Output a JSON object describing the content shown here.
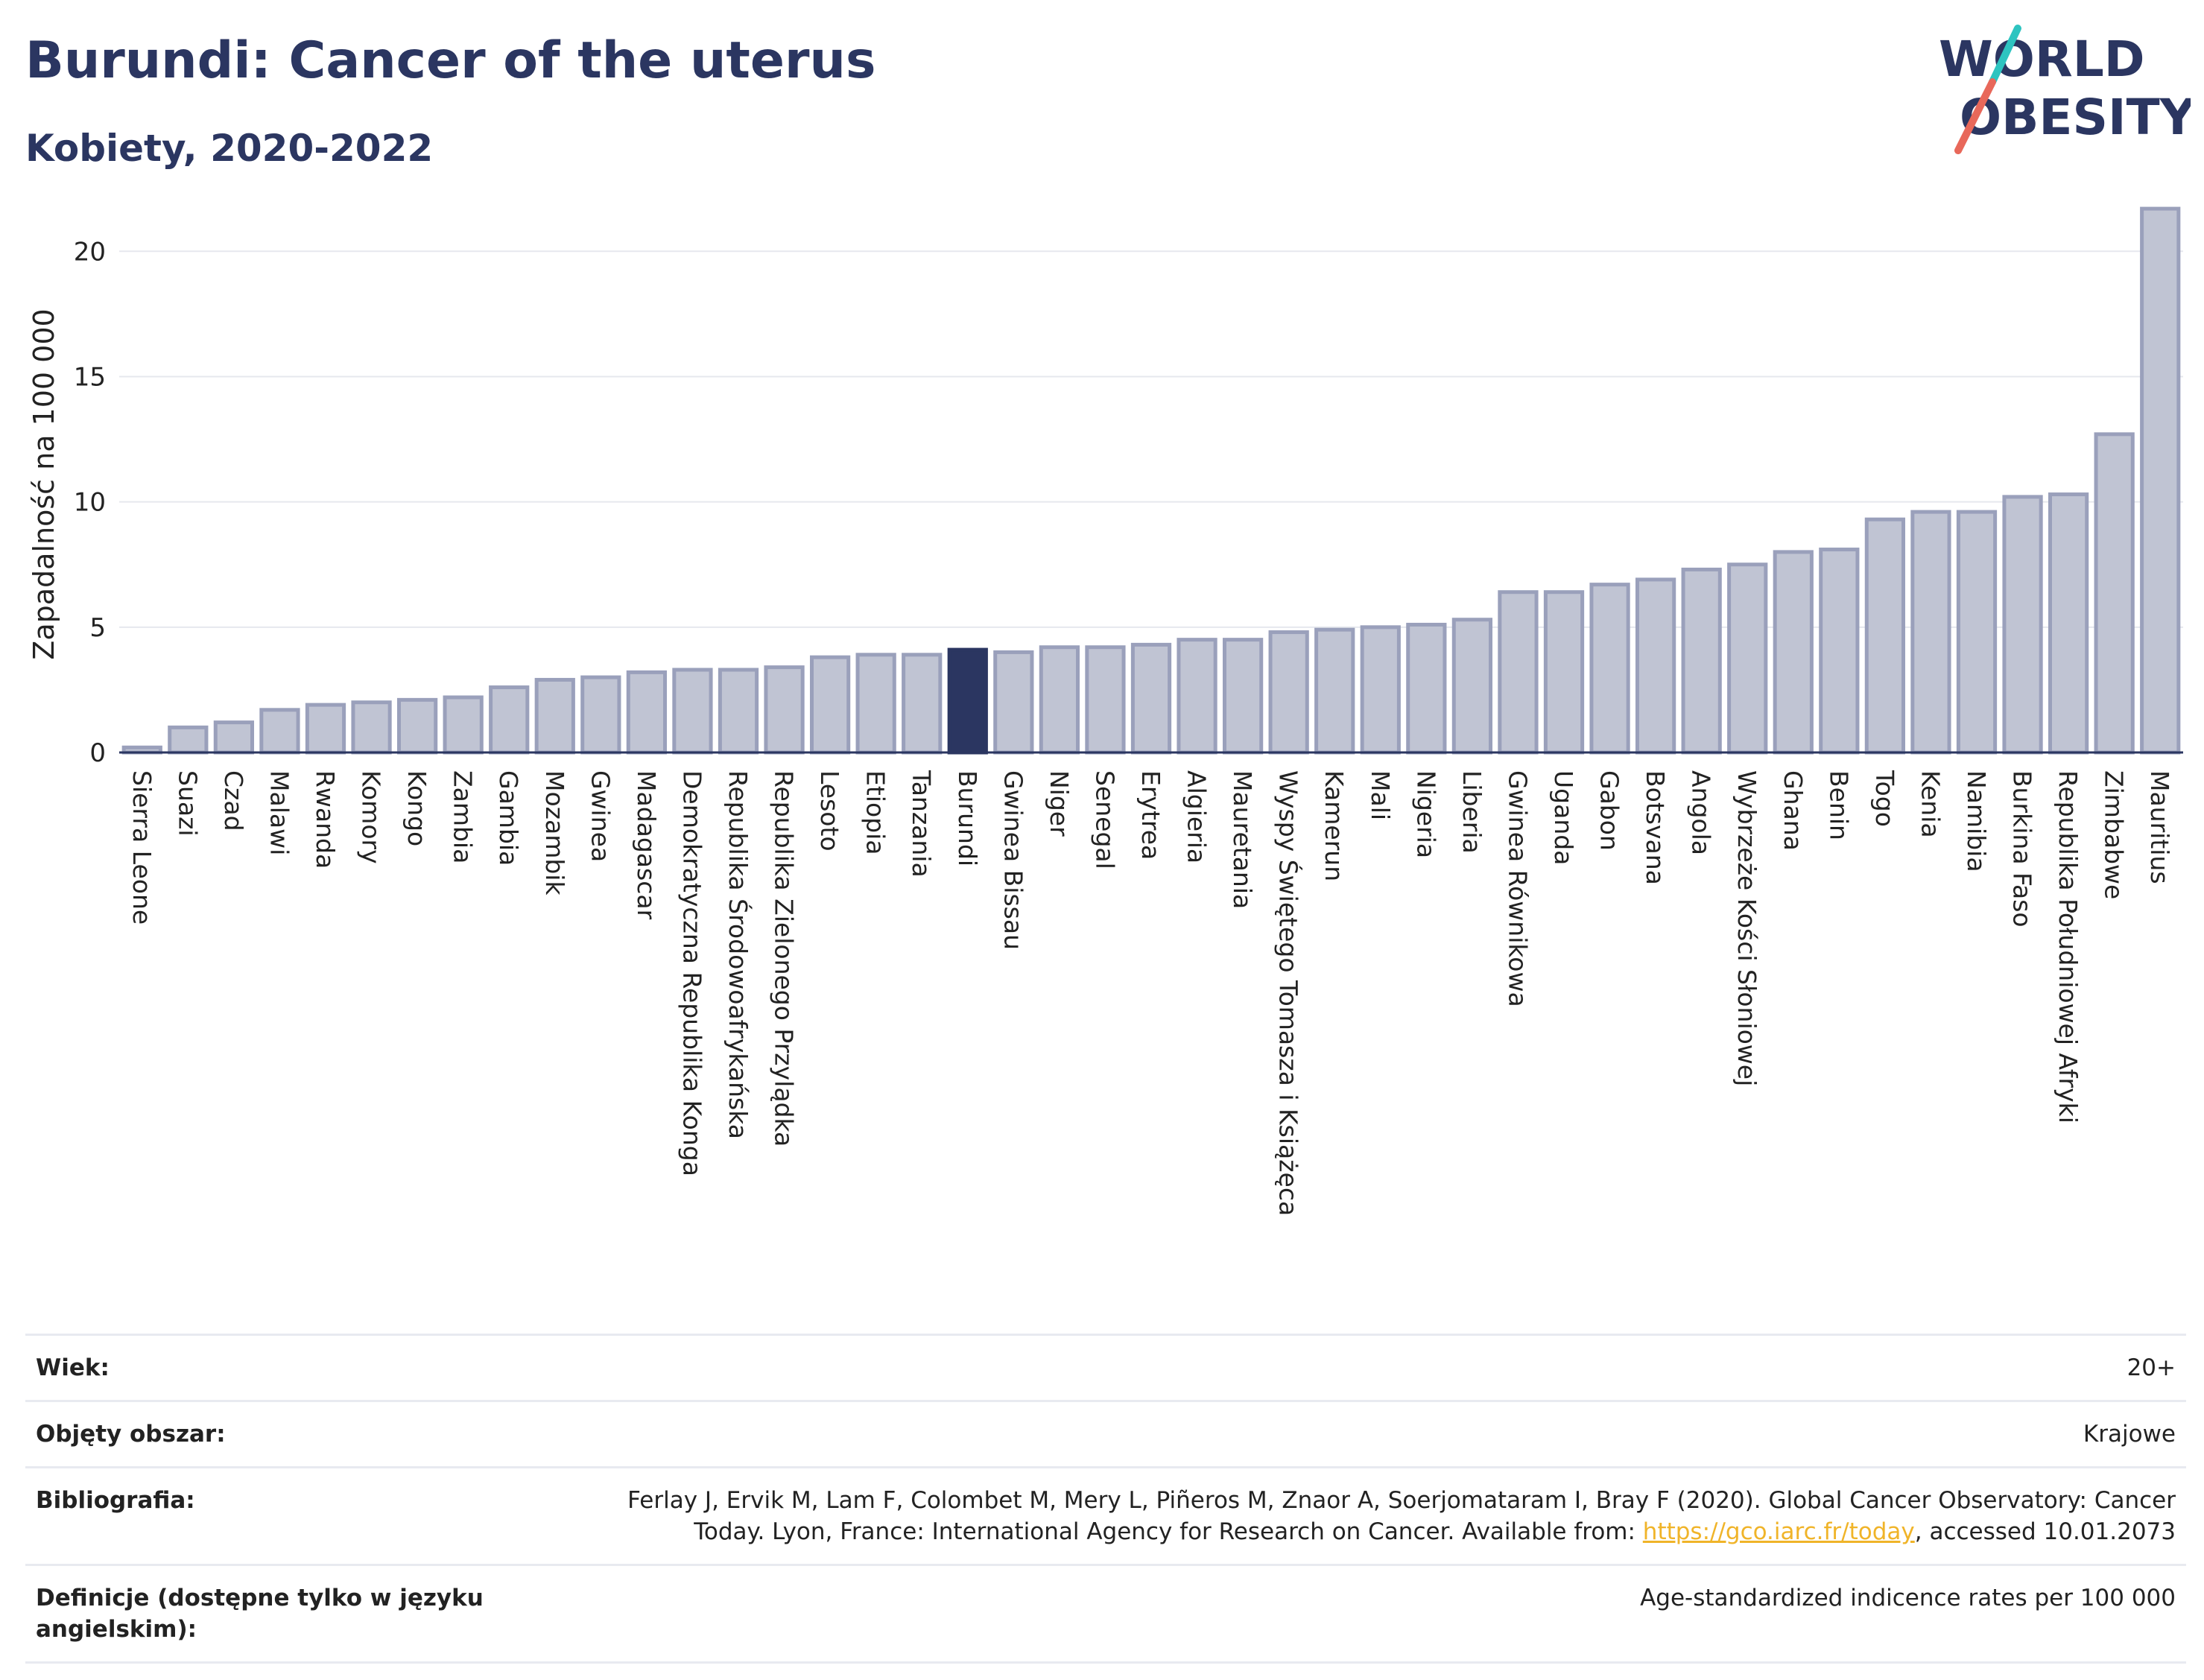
{
  "header": {
    "title": "Burundi: Cancer of the uterus",
    "subtitle": "Kobiety, 2020-2022"
  },
  "logo": {
    "line1": "WORLD",
    "line2": "OBESITY",
    "colors": {
      "text": "#2b3661",
      "slash_teal": "#2ec4c0",
      "slash_red": "#e8685a"
    }
  },
  "chart_data": {
    "type": "bar",
    "ylabel": "Zapadalność na 100 000",
    "xlabel": "",
    "ylim": [
      0,
      22
    ],
    "yticks": [
      0,
      5,
      10,
      15,
      20
    ],
    "grid": true,
    "highlight": "Burundi",
    "colors": {
      "bar": "#c0c4d3",
      "bar_border": "#9aa0bb",
      "highlight": "#2b3661"
    },
    "categories": [
      "Sierra Leone",
      "Suazi",
      "Czad",
      "Malawi",
      "Rwanda",
      "Komory",
      "Kongo",
      "Zambia",
      "Gambia",
      "Mozambik",
      "Gwinea",
      "Madagascar",
      "Demokratyczna Republika Konga",
      "Republika Środowoafrykańska",
      "Republika Zielonego Przylądka",
      "Lesoto",
      "Etiopia",
      "Tanzania",
      "Burundi",
      "Gwinea Bissau",
      "Niger",
      "Senegal",
      "Erytrea",
      "Algieria",
      "Mauretania",
      "Wyspy Świętego Tomasza i Książęca",
      "Kamerun",
      "Mali",
      "Nigeria",
      "Liberia",
      "Gwinea Równikowa",
      "Uganda",
      "Gabon",
      "Botsvana",
      "Angola",
      "Wybrzeże Kości Słoniowej",
      "Ghana",
      "Benin",
      "Togo",
      "Kenia",
      "Namibia",
      "Burkina Faso",
      "Republika Południowej Afryki",
      "Zimbabwe",
      "Mauritius"
    ],
    "values": [
      0.2,
      1.0,
      1.2,
      1.7,
      1.9,
      2.0,
      2.1,
      2.2,
      2.6,
      2.9,
      3.0,
      3.2,
      3.3,
      3.3,
      3.4,
      3.8,
      3.9,
      3.9,
      4.1,
      4.0,
      4.2,
      4.2,
      4.3,
      4.5,
      4.5,
      4.8,
      4.9,
      5.0,
      5.1,
      5.3,
      6.4,
      6.4,
      6.7,
      6.9,
      7.3,
      7.5,
      8.0,
      8.1,
      9.3,
      9.6,
      9.6,
      10.2,
      10.3,
      12.7,
      21.7
    ]
  },
  "info": {
    "rows": [
      {
        "label": "Wiek:",
        "value": "20+"
      },
      {
        "label": "Objęty obszar:",
        "value": "Krajowe"
      },
      {
        "label": "Bibliografia:",
        "value_pre": "Ferlay J, Ervik M, Lam F, Colombet M, Mery L, Piñeros M, Znaor A, Soerjomataram I, Bray F (2020). Global Cancer Observatory: Cancer Today. Lyon, France: International Agency for Research on Cancer. Available from: ",
        "link": "https://gco.iarc.fr/today",
        "value_post": ", accessed 10.01.2073"
      },
      {
        "label": "Definicje (dostępne tylko w języku angielskim):",
        "value": "Age-standardized indicence rates per 100 000"
      }
    ]
  }
}
